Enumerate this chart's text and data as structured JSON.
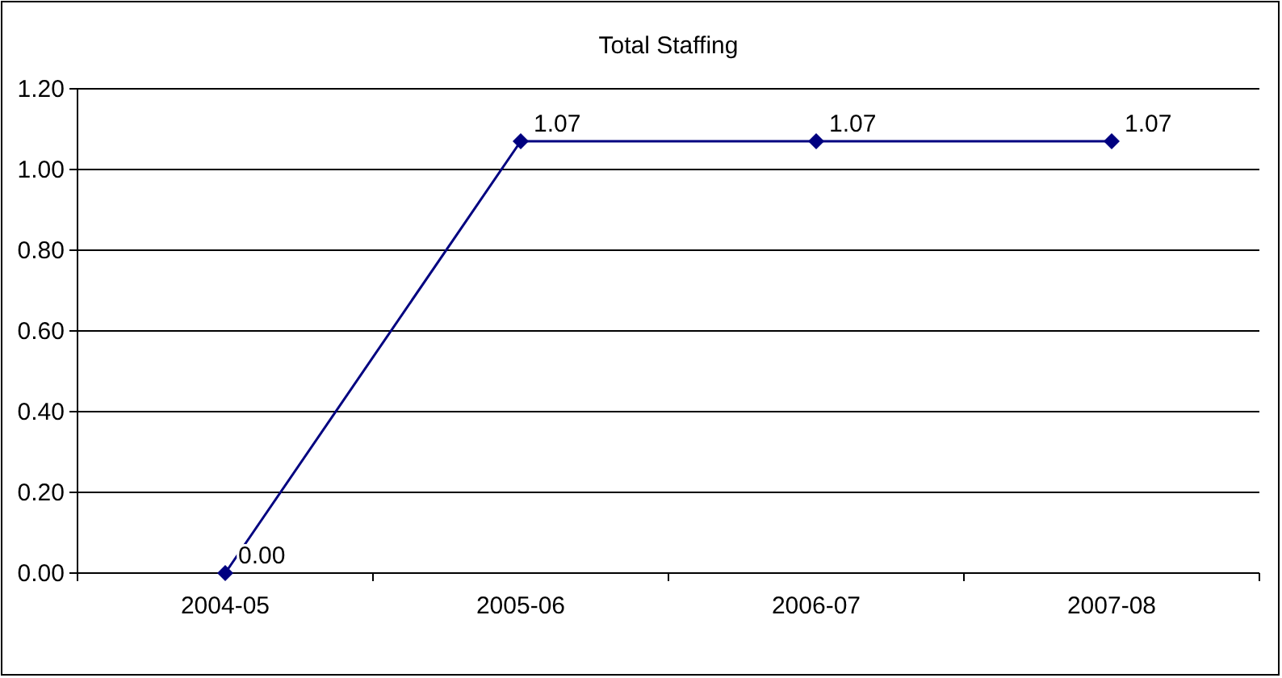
{
  "chart_data": {
    "type": "line",
    "title": "Total Staffing",
    "categories": [
      "2004-05",
      "2005-06",
      "2006-07",
      "2007-08"
    ],
    "series": [
      {
        "color": "#000080",
        "values": [
          0,
          1.07,
          1.07,
          1.07
        ],
        "value_labels": [
          "0.00",
          "1.07",
          "1.07",
          "1.07"
        ]
      }
    ],
    "ylim": [
      0,
      1.2
    ],
    "yticks": [
      {
        "value": 0,
        "label": "0.00"
      },
      {
        "value": 0.2,
        "label": "0.20"
      },
      {
        "value": 0.4,
        "label": "0.40"
      },
      {
        "value": 0.6,
        "label": "0.60"
      },
      {
        "value": 0.8,
        "label": "0.80"
      },
      {
        "value": 1,
        "label": "1.00"
      },
      {
        "value": 1.2,
        "label": "1.20"
      }
    ],
    "grid": "y",
    "marker": "diamond",
    "line_style": "solid"
  }
}
